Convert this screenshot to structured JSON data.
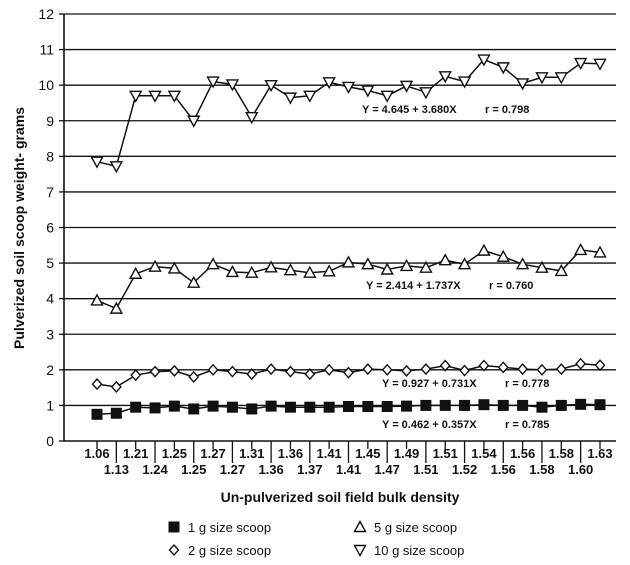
{
  "chart_data": {
    "type": "line",
    "title": "",
    "xlabel": "Un-pulverized soil field bulk density",
    "ylabel": "Pulverized soil scoop weight- grams",
    "ylim": [
      0,
      12
    ],
    "yticks": [
      "0",
      "1",
      "2",
      "3",
      "4",
      "5",
      "6",
      "7",
      "8",
      "9",
      "10",
      "11",
      "12"
    ],
    "grid": "horizontal",
    "legend_position": "bottom",
    "x_upper_labels": [
      "1.06",
      "1.21",
      "1.25",
      "1.27",
      "1.31",
      "1.36",
      "1.41",
      "1.45",
      "1.49",
      "1.51",
      "1.54",
      "1.56",
      "1.58",
      "1.63"
    ],
    "x_lower_labels": [
      "1.13",
      "1.24",
      "1.25",
      "1.27",
      "1.36",
      "1.37",
      "1.41",
      "1.47",
      "1.51",
      "1.52",
      "1.56",
      "1.58",
      "1.60"
    ],
    "series": [
      {
        "name": "1 g size scoop",
        "marker": "filled-square",
        "equation": "Y = 0.462 + 0.357X",
        "r_label": "r = 0.785",
        "values": [
          0.75,
          0.78,
          0.95,
          0.93,
          0.98,
          0.9,
          0.98,
          0.95,
          0.9,
          0.98,
          0.95,
          0.95,
          0.95,
          0.97,
          0.97,
          0.97,
          0.98,
          1.0,
          1.0,
          1.0,
          1.02,
          1.0,
          1.0,
          0.95,
          1.0,
          1.03,
          1.02
        ]
      },
      {
        "name": "2 g size scoop",
        "marker": "open-diamond",
        "equation": "Y = 0.927 + 0.731X",
        "r_label": "r = 0.778",
        "values": [
          1.6,
          1.52,
          1.85,
          1.95,
          1.97,
          1.8,
          2.0,
          1.95,
          1.88,
          2.02,
          1.95,
          1.88,
          2.0,
          1.92,
          2.02,
          2.0,
          1.97,
          2.02,
          2.12,
          1.98,
          2.12,
          2.07,
          2.02,
          2.0,
          2.02,
          2.17,
          2.13
        ]
      },
      {
        "name": "5 g size scoop",
        "marker": "open-triangle-up",
        "equation": "Y = 2.414 + 1.737X",
        "r_label": "r = 0.760",
        "values": [
          3.95,
          3.72,
          4.7,
          4.9,
          4.85,
          4.45,
          4.97,
          4.75,
          4.73,
          4.88,
          4.8,
          4.73,
          4.77,
          5.02,
          4.97,
          4.82,
          4.92,
          4.87,
          5.08,
          4.97,
          5.35,
          5.18,
          4.97,
          4.87,
          4.78,
          5.37,
          5.3
        ]
      },
      {
        "name": "10 g size scoop",
        "marker": "open-triangle-down",
        "equation": "Y = 4.645 + 3.680X",
        "r_label": "r = 0.798",
        "values": [
          7.85,
          7.72,
          9.7,
          9.7,
          9.7,
          9.0,
          10.1,
          10.02,
          9.1,
          10.0,
          9.65,
          9.7,
          10.08,
          9.95,
          9.85,
          9.7,
          9.98,
          9.8,
          10.25,
          10.1,
          10.72,
          10.5,
          10.05,
          10.22,
          10.22,
          10.62,
          10.6
        ]
      }
    ]
  }
}
